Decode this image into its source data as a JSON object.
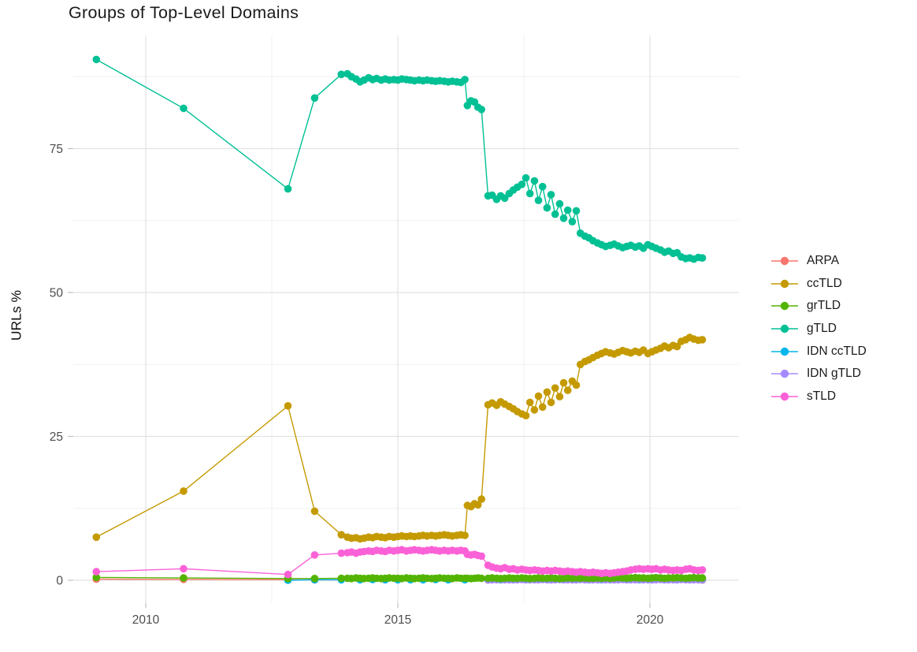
{
  "axes": {
    "x_tick_labels": [
      "2010",
      "2015",
      "2020"
    ],
    "y_tick_labels": [
      "0",
      "25",
      "50",
      "75"
    ]
  },
  "legend": {
    "entries": [
      {
        "label": "ARPA",
        "color": "#F8766D"
      },
      {
        "label": "ccTLD",
        "color": "#C49A00"
      },
      {
        "label": "grTLD",
        "color": "#53B400"
      },
      {
        "label": "gTLD",
        "color": "#00C094"
      },
      {
        "label": "IDN ccTLD",
        "color": "#00B6EB"
      },
      {
        "label": "IDN gTLD",
        "color": "#A58AFF"
      },
      {
        "label": "sTLD",
        "color": "#FB61D7"
      }
    ]
  },
  "colors": {
    "grid_major": "#e2e2e2",
    "grid_minor": "#f0f0f0",
    "tick_mark": "#bfbfbf",
    "tick_label": "#4d4d4d",
    "title": "#1a1a1a"
  },
  "chart_data": {
    "type": "line",
    "title": "Groups of Top-Level Domains",
    "xlabel": "",
    "ylabel": "URLs %",
    "grid": true,
    "legend_position": "right",
    "point_markers": true,
    "xlim": [
      2008.5625,
      2021.766
    ],
    "ylim": [
      -3.97,
      94.66
    ],
    "x_ticks": [
      {
        "value": 2010,
        "label": "2010"
      },
      {
        "value": 2015,
        "label": "2015"
      },
      {
        "value": 2020,
        "label": "2020"
      }
    ],
    "y_ticks": [
      {
        "value": 0,
        "label": "0"
      },
      {
        "value": 25,
        "label": "25"
      },
      {
        "value": 50,
        "label": "50"
      },
      {
        "value": 75,
        "label": "75"
      }
    ],
    "x_minor": [
      2012.5,
      2017.5
    ],
    "y_minor": [
      12.5,
      37.5,
      62.5,
      87.5
    ],
    "x_common": [
      2009.02,
      2010.75,
      2012.82,
      2013.35,
      2013.88,
      2014.0,
      2014.08,
      2014.17,
      2014.25,
      2014.33,
      2014.42,
      2014.5,
      2014.58,
      2014.67,
      2014.75,
      2014.83,
      2014.92,
      2015.0,
      2015.08,
      2015.17,
      2015.25,
      2015.33,
      2015.42,
      2015.5,
      2015.58,
      2015.67,
      2015.75,
      2015.83,
      2015.92,
      2016.0,
      2016.08,
      2016.17,
      2016.25,
      2016.33,
      2016.38,
      2016.45,
      2016.52,
      2016.59,
      2016.66,
      2016.79,
      2016.87,
      2016.96,
      2017.04,
      2017.12,
      2017.21,
      2017.29,
      2017.37,
      2017.46,
      2017.54,
      2017.62,
      2017.71,
      2017.79,
      2017.87,
      2017.96,
      2018.04,
      2018.12,
      2018.21,
      2018.29,
      2018.37,
      2018.46,
      2018.54,
      2018.62,
      2018.71,
      2018.79,
      2018.87,
      2018.96,
      2019.04,
      2019.12,
      2019.21,
      2019.29,
      2019.37,
      2019.46,
      2019.54,
      2019.62,
      2019.71,
      2019.79,
      2019.87,
      2019.96,
      2020.04,
      2020.12,
      2020.21,
      2020.29,
      2020.37,
      2020.46,
      2020.54,
      2020.62,
      2020.71,
      2020.79,
      2020.87,
      2020.96,
      2021.04
    ],
    "series": [
      {
        "name": "ARPA",
        "color": "#F8766D",
        "points": [
          [
            2009.02,
            0.2
          ],
          [
            2010.75,
            0.15
          ],
          [
            2012.82,
            0.1
          ],
          [
            2013.35,
            0.07
          ],
          [
            2016.79,
            0.05
          ],
          [
            2021.04,
            0.05
          ]
        ]
      },
      {
        "name": "IDN ccTLD",
        "color": "#00B6EB",
        "points": [
          [
            2012.82,
            0.0
          ],
          [
            2013.35,
            0.1
          ],
          [
            2013.88,
            0.08
          ],
          [
            2014.25,
            0.1
          ],
          [
            2014.5,
            0.12
          ],
          [
            2014.75,
            0.1
          ],
          [
            2015.0,
            0.08
          ],
          [
            2015.25,
            0.1
          ],
          [
            2015.5,
            0.1
          ],
          [
            2015.75,
            0.12
          ],
          [
            2016.0,
            0.1
          ],
          [
            2016.33,
            0.1
          ],
          [
            2016.79,
            0.1
          ],
          [
            2017.04,
            0.08
          ],
          [
            2017.29,
            0.1
          ],
          [
            2017.54,
            0.1
          ],
          [
            2017.79,
            0.12
          ],
          [
            2018.04,
            0.1
          ],
          [
            2018.29,
            0.1
          ],
          [
            2018.54,
            0.08
          ],
          [
            2018.79,
            0.1
          ],
          [
            2019.04,
            0.1
          ],
          [
            2019.29,
            0.12
          ],
          [
            2019.54,
            0.1
          ],
          [
            2019.79,
            0.1
          ],
          [
            2020.04,
            0.08
          ],
          [
            2020.29,
            0.1
          ],
          [
            2020.54,
            0.1
          ],
          [
            2020.79,
            0.12
          ],
          [
            2021.04,
            0.1
          ]
        ]
      },
      {
        "name": "IDN gTLD",
        "color": "#A58AFF",
        "x_start_index": 39,
        "y": [
          0.1,
          0.08,
          0.1,
          0.12,
          0.1,
          0.08,
          0.1,
          0.1,
          0.12,
          0.1,
          0.08,
          0.1,
          0.1,
          0.12,
          0.1,
          0.08,
          0.1,
          0.12,
          0.1,
          0.1,
          0.08,
          0.1,
          0.12,
          0.1,
          0.1,
          0.08,
          0.1,
          0.12,
          0.1,
          0.08,
          0.1,
          0.1,
          0.12,
          0.1,
          0.08,
          0.1,
          0.12,
          0.1,
          0.1,
          0.08,
          0.1,
          0.12,
          0.1,
          0.08,
          0.1,
          0.1,
          0.12,
          0.1,
          0.08,
          0.1,
          0.1,
          0.1
        ]
      },
      {
        "name": "grTLD",
        "color": "#53B400",
        "y": [
          0.5,
          0.4,
          0.3,
          0.3,
          0.35,
          0.35,
          0.3,
          0.4,
          0.35,
          0.3,
          0.35,
          0.4,
          0.35,
          0.3,
          0.35,
          0.4,
          0.35,
          0.35,
          0.3,
          0.4,
          0.35,
          0.3,
          0.35,
          0.4,
          0.35,
          0.3,
          0.35,
          0.4,
          0.35,
          0.35,
          0.3,
          0.4,
          0.35,
          0.35,
          0.35,
          0.3,
          0.35,
          0.4,
          0.35,
          0.35,
          0.4,
          0.35,
          0.3,
          0.35,
          0.4,
          0.35,
          0.35,
          0.4,
          0.35,
          0.3,
          0.35,
          0.4,
          0.35,
          0.35,
          0.4,
          0.35,
          0.3,
          0.35,
          0.4,
          0.35,
          0.4,
          0.35,
          0.4,
          0.35,
          0.35,
          0.4,
          0.35,
          0.4,
          0.35,
          0.4,
          0.45,
          0.4,
          0.35,
          0.4,
          0.45,
          0.4,
          0.4,
          0.35,
          0.4,
          0.45,
          0.4,
          0.35,
          0.4,
          0.4,
          0.45,
          0.4,
          0.35,
          0.4,
          0.45,
          0.4,
          0.4
        ]
      },
      {
        "name": "ccTLD",
        "color": "#C49A00",
        "y": [
          7.5,
          15.5,
          30.3,
          12.0,
          7.9,
          7.5,
          7.3,
          7.4,
          7.2,
          7.3,
          7.5,
          7.4,
          7.6,
          7.5,
          7.4,
          7.6,
          7.5,
          7.6,
          7.7,
          7.6,
          7.7,
          7.6,
          7.7,
          7.8,
          7.7,
          7.8,
          7.7,
          7.8,
          7.9,
          7.8,
          7.7,
          7.8,
          7.9,
          7.8,
          13.0,
          12.8,
          13.3,
          13.1,
          14.1,
          30.5,
          30.8,
          30.4,
          31.0,
          30.6,
          30.2,
          29.8,
          29.3,
          28.9,
          28.6,
          30.9,
          29.6,
          32.0,
          30.1,
          32.7,
          30.9,
          33.4,
          31.9,
          34.3,
          33.0,
          34.6,
          33.9,
          37.5,
          38.0,
          38.3,
          38.7,
          39.1,
          39.4,
          39.7,
          39.5,
          39.3,
          39.6,
          39.9,
          39.7,
          39.5,
          39.8,
          39.6,
          40.0,
          39.4,
          39.7,
          40.0,
          40.3,
          40.7,
          40.4,
          40.8,
          40.6,
          41.5,
          41.8,
          42.2,
          41.9,
          41.7,
          41.8
        ]
      },
      {
        "name": "gTLD",
        "color": "#00C094",
        "y": [
          90.5,
          82.0,
          68.0,
          83.8,
          87.9,
          88.0,
          87.5,
          87.1,
          86.6,
          86.9,
          87.3,
          87.0,
          87.2,
          86.9,
          87.1,
          86.9,
          87.0,
          86.9,
          87.1,
          87.0,
          86.9,
          86.8,
          86.9,
          86.8,
          86.9,
          86.8,
          86.7,
          86.8,
          86.7,
          86.6,
          86.7,
          86.6,
          86.5,
          87.0,
          82.5,
          83.3,
          83.1,
          82.2,
          81.8,
          66.8,
          66.9,
          66.2,
          66.8,
          66.4,
          67.2,
          67.8,
          68.3,
          68.8,
          69.9,
          67.2,
          69.4,
          66.0,
          68.4,
          64.7,
          67.0,
          63.6,
          65.4,
          62.9,
          64.3,
          62.3,
          64.2,
          60.3,
          59.8,
          59.5,
          59.0,
          58.6,
          58.3,
          58.0,
          58.2,
          58.4,
          58.1,
          57.8,
          58.0,
          58.2,
          57.9,
          58.1,
          57.7,
          58.3,
          58.0,
          57.7,
          57.4,
          57.0,
          57.2,
          56.8,
          56.9,
          56.2,
          55.9,
          56.0,
          55.8,
          56.1,
          56.0
        ]
      },
      {
        "name": "sTLD",
        "color": "#FB61D7",
        "y": [
          1.5,
          2.0,
          1.0,
          4.4,
          4.7,
          4.8,
          4.9,
          4.7,
          4.9,
          5.0,
          5.1,
          5.0,
          5.2,
          5.1,
          5.0,
          5.2,
          5.1,
          5.2,
          5.3,
          5.1,
          5.2,
          5.3,
          5.2,
          5.1,
          5.2,
          5.3,
          5.2,
          5.1,
          5.2,
          5.1,
          5.2,
          5.1,
          5.2,
          5.1,
          4.5,
          4.4,
          4.5,
          4.3,
          4.2,
          2.6,
          2.3,
          2.1,
          2.0,
          2.2,
          1.9,
          2.0,
          1.8,
          1.9,
          1.8,
          1.7,
          1.8,
          1.7,
          1.6,
          1.7,
          1.6,
          1.7,
          1.6,
          1.5,
          1.6,
          1.5,
          1.4,
          1.5,
          1.4,
          1.3,
          1.4,
          1.3,
          1.2,
          1.3,
          1.2,
          1.3,
          1.4,
          1.5,
          1.6,
          1.8,
          1.9,
          2.0,
          1.9,
          2.0,
          1.9,
          2.0,
          1.8,
          1.9,
          1.8,
          1.7,
          1.8,
          1.7,
          1.9,
          2.0,
          1.8,
          1.7,
          1.8
        ]
      }
    ]
  }
}
